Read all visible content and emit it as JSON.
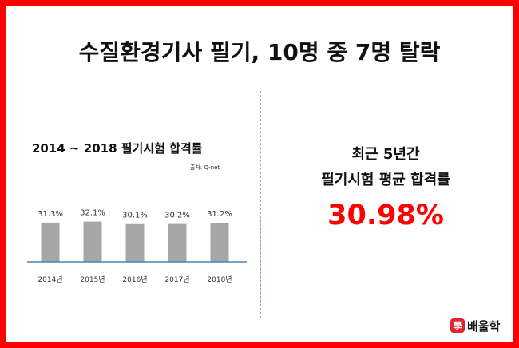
{
  "headline": "수질환경기사 필기, 10명 중 7명 탈락",
  "chart": {
    "title": "2014 ~ 2018 필기시험 합격률",
    "source": "출처: Q-net"
  },
  "chart_data": {
    "type": "bar",
    "categories": [
      "2014년",
      "2015년",
      "2016년",
      "2017년",
      "2018년"
    ],
    "values": [
      31.3,
      32.1,
      30.1,
      30.2,
      31.2
    ],
    "data_labels": [
      "31.3%",
      "32.1%",
      "30.1%",
      "30.2%",
      "31.2%"
    ],
    "title": "2014 ~ 2018 필기시험 합격률",
    "xlabel": "",
    "ylabel": "",
    "ylim": [
      0,
      34
    ],
    "grid": false,
    "colors": {
      "bar": "#a6a6a6",
      "axis": "#4f81bd"
    }
  },
  "summary": {
    "line1": "최근 5년간",
    "line2": "필기시험 평균 합격률",
    "value": "30.98%",
    "value_color": "#ff0000"
  },
  "logo": {
    "mark": "學",
    "text": "배울학"
  },
  "colors": {
    "frame": "#ff0000",
    "divider": "#8aa3c2"
  }
}
